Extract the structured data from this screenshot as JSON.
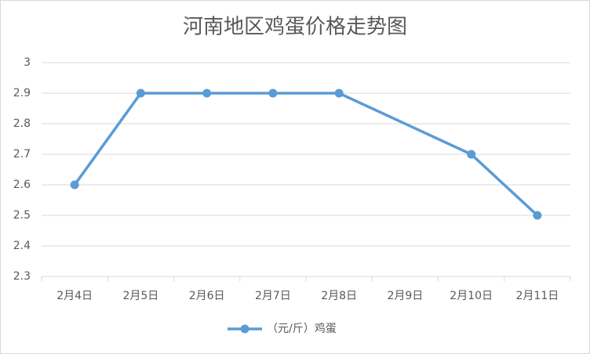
{
  "chart_data": {
    "type": "line",
    "title": "河南地区鸡蛋价格走势图",
    "categories": [
      "2月4日",
      "2月5日",
      "2月6日",
      "2月7日",
      "2月8日",
      "2月9日",
      "2月10日",
      "2月11日"
    ],
    "series": [
      {
        "name": "（元/斤）鸡蛋",
        "color": "#5b9bd5",
        "values": [
          2.6,
          2.9,
          2.9,
          2.9,
          2.9,
          null,
          2.7,
          2.5
        ]
      }
    ],
    "ylim": [
      2.3,
      3
    ],
    "yticks": [
      2.3,
      2.4,
      2.5,
      2.6,
      2.7,
      2.8,
      2.9,
      3
    ],
    "grid": true,
    "connect_gaps": true,
    "legend": "bottom"
  }
}
